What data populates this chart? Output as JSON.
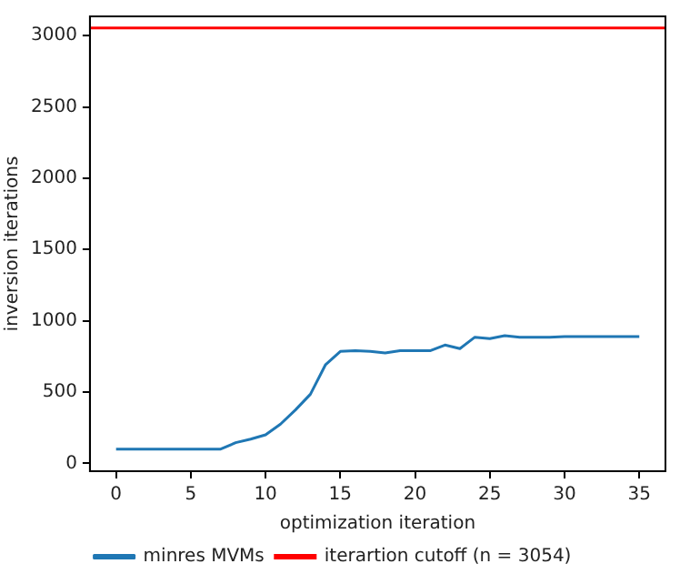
{
  "chart_data": {
    "type": "line",
    "xlabel": "optimization iteration",
    "ylabel": "inversion iterations",
    "x": [
      0,
      1,
      2,
      3,
      4,
      5,
      6,
      7,
      8,
      9,
      10,
      11,
      12,
      13,
      14,
      15,
      16,
      17,
      18,
      19,
      20,
      21,
      22,
      23,
      24,
      25,
      26,
      27,
      28,
      29,
      30,
      31,
      32,
      33,
      34,
      35
    ],
    "series": [
      {
        "name": "minres MVMs",
        "color": "#1f77b4",
        "values": [
          100,
          100,
          100,
          100,
          100,
          100,
          100,
          100,
          145,
          170,
          200,
          275,
          375,
          485,
          690,
          785,
          790,
          785,
          775,
          790,
          790,
          790,
          830,
          805,
          885,
          875,
          895,
          885,
          885,
          885,
          890,
          890,
          890,
          890,
          890,
          890
        ]
      }
    ],
    "ref_lines": [
      {
        "axis": "y",
        "value": 3054,
        "label": "iterartion cutoff (n = 3054)",
        "color": "#ff0000"
      }
    ],
    "xlim": [
      -1.75,
      36.75
    ],
    "ylim": [
      -55,
      3135
    ],
    "xticks": [
      0,
      5,
      10,
      15,
      20,
      25,
      30,
      35
    ],
    "yticks": [
      0,
      500,
      1000,
      1500,
      2000,
      2500,
      3000
    ],
    "grid": false,
    "legend": "bottom",
    "marker": "none",
    "line_style": "solid"
  }
}
